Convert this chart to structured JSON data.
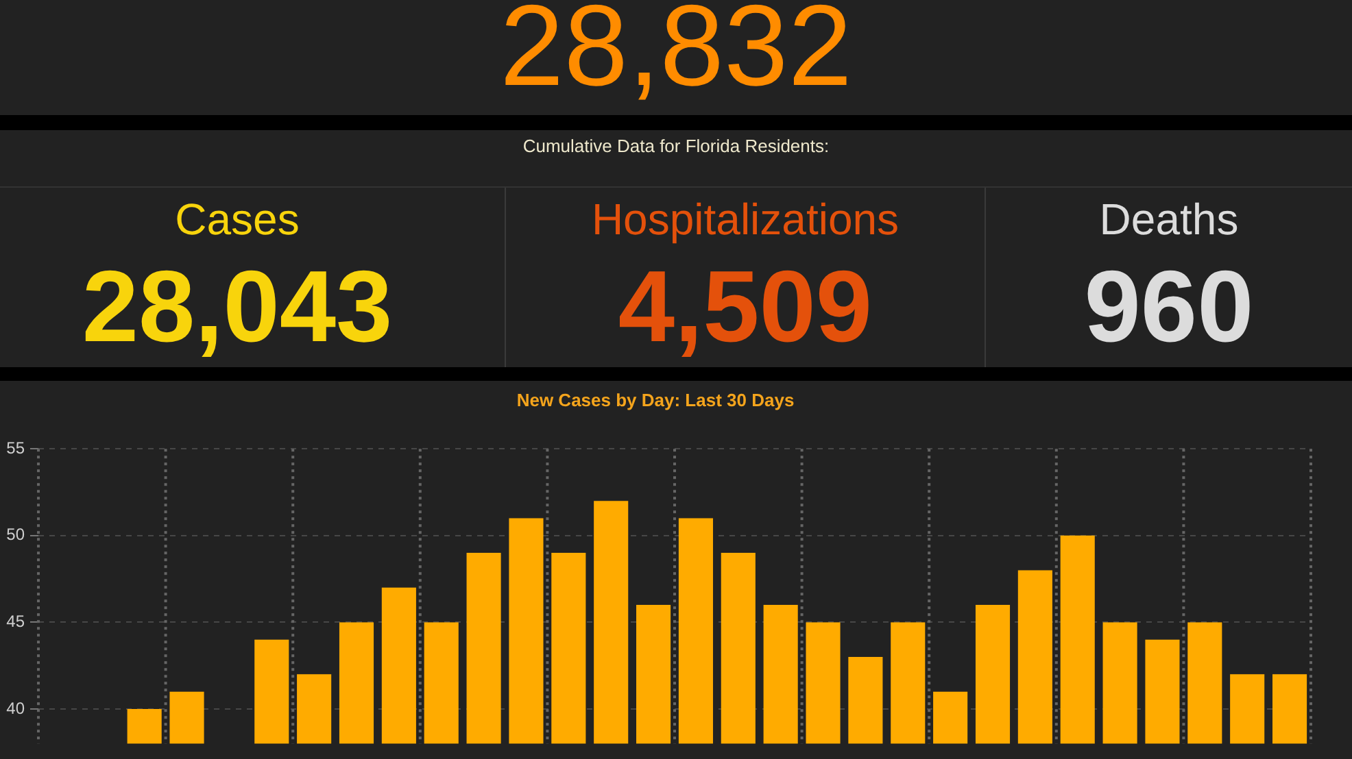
{
  "chart_data": [
    {
      "type": "other",
      "annotations": [
        "28,832"
      ]
    },
    {
      "type": "other",
      "title": "Cumulative Data for Florida Residents:",
      "categories": [
        "Cases",
        "Hospitalizations",
        "Deaths"
      ],
      "value_labels": [
        "28,043",
        "4,509",
        "960"
      ]
    },
    {
      "type": "bar",
      "title": "New Cases by Day: Last 30 Days",
      "categories": [
        null,
        null,
        null,
        null,
        null,
        null,
        null,
        null,
        null,
        null,
        null,
        null,
        null,
        null,
        null,
        null,
        null,
        null,
        null,
        null,
        null,
        null,
        null,
        null,
        null,
        null,
        null,
        null,
        null,
        null
      ],
      "values": [
        null,
        null,
        40,
        41,
        null,
        44,
        42,
        45,
        47,
        45,
        49,
        51,
        49,
        52,
        46,
        51,
        49,
        46,
        45,
        43,
        45,
        41,
        46,
        48,
        50,
        45,
        44,
        45,
        42,
        42
      ],
      "color": "#ffab00",
      "ylim": [
        38,
        55
      ],
      "yticks": [
        40,
        45,
        50,
        55
      ],
      "grid": true,
      "tick_labels": "y"
    }
  ]
}
